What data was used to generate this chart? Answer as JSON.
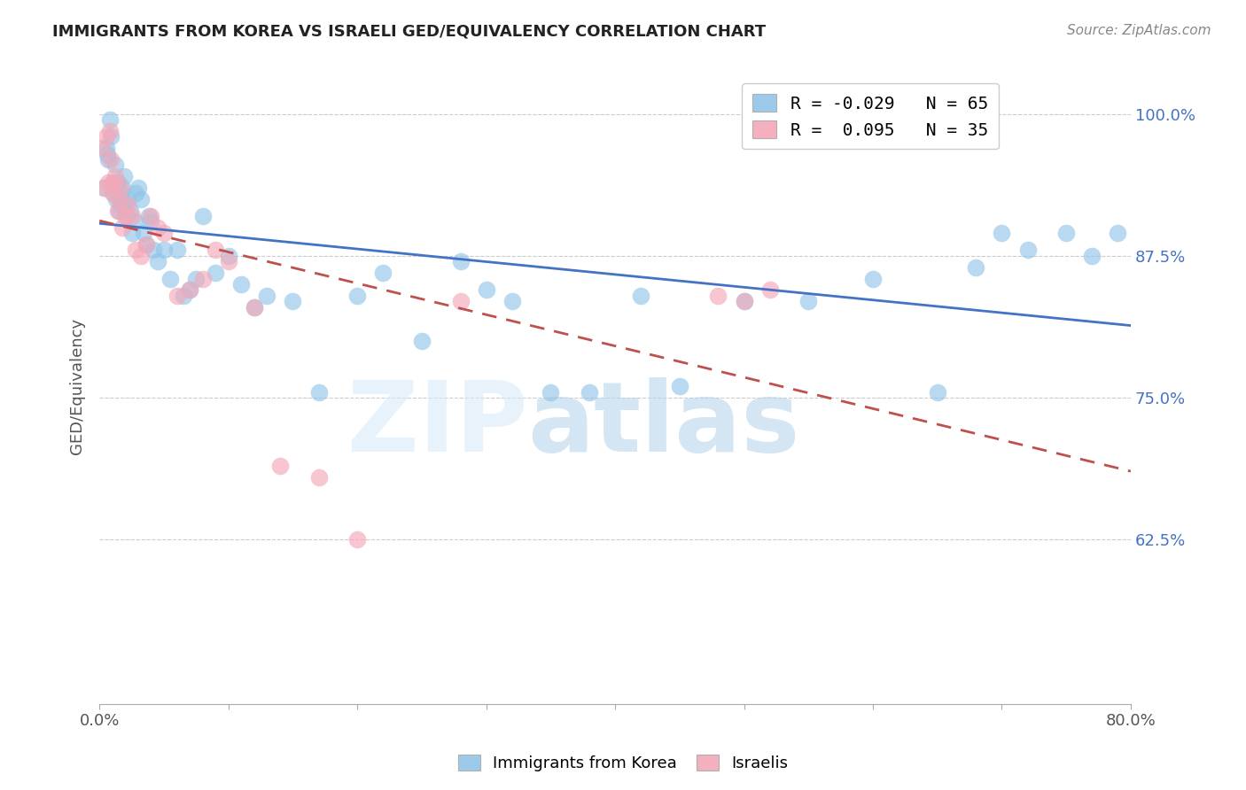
{
  "title": "IMMIGRANTS FROM KOREA VS ISRAELI GED/EQUIVALENCY CORRELATION CHART",
  "source": "Source: ZipAtlas.com",
  "ylabel": "GED/Equivalency",
  "legend_korea": "R = -0.029   N = 65",
  "legend_israel": "R =  0.095   N = 35",
  "legend_label_korea": "Immigrants from Korea",
  "legend_label_israel": "Israelis",
  "xlim": [
    0.0,
    0.8
  ],
  "ylim": [
    0.48,
    1.04
  ],
  "yticks": [
    0.625,
    0.75,
    0.875,
    1.0
  ],
  "ytick_labels": [
    "62.5%",
    "75.0%",
    "87.5%",
    "100.0%"
  ],
  "xticks": [
    0.0,
    0.1,
    0.2,
    0.3,
    0.4,
    0.5,
    0.6,
    0.7,
    0.8
  ],
  "xtick_labels": [
    "0.0%",
    "",
    "",
    "",
    "",
    "",
    "",
    "",
    "80.0%"
  ],
  "color_korea": "#92C5E8",
  "color_israel": "#F4A8B8",
  "color_line_korea": "#4472C4",
  "color_line_israel": "#C0504D",
  "color_axis_labels": "#4472C4",
  "korea_x": [
    0.003,
    0.005,
    0.006,
    0.007,
    0.008,
    0.009,
    0.01,
    0.011,
    0.012,
    0.013,
    0.014,
    0.015,
    0.016,
    0.017,
    0.018,
    0.019,
    0.02,
    0.021,
    0.022,
    0.024,
    0.025,
    0.027,
    0.028,
    0.03,
    0.032,
    0.034,
    0.036,
    0.038,
    0.04,
    0.042,
    0.045,
    0.05,
    0.055,
    0.06,
    0.065,
    0.07,
    0.075,
    0.08,
    0.09,
    0.1,
    0.11,
    0.12,
    0.13,
    0.15,
    0.17,
    0.2,
    0.22,
    0.25,
    0.28,
    0.3,
    0.32,
    0.35,
    0.38,
    0.42,
    0.45,
    0.5,
    0.55,
    0.6,
    0.65,
    0.68,
    0.7,
    0.72,
    0.75,
    0.77,
    0.79
  ],
  "korea_y": [
    0.935,
    0.97,
    0.965,
    0.96,
    0.995,
    0.98,
    0.94,
    0.93,
    0.955,
    0.925,
    0.94,
    0.915,
    0.92,
    0.93,
    0.935,
    0.945,
    0.92,
    0.91,
    0.925,
    0.915,
    0.895,
    0.905,
    0.93,
    0.935,
    0.925,
    0.895,
    0.885,
    0.91,
    0.905,
    0.88,
    0.87,
    0.88,
    0.855,
    0.88,
    0.84,
    0.845,
    0.855,
    0.91,
    0.86,
    0.875,
    0.85,
    0.83,
    0.84,
    0.835,
    0.755,
    0.84,
    0.86,
    0.8,
    0.87,
    0.845,
    0.835,
    0.755,
    0.755,
    0.84,
    0.76,
    0.835,
    0.835,
    0.855,
    0.755,
    0.865,
    0.895,
    0.88,
    0.895,
    0.875,
    0.895
  ],
  "israel_x": [
    0.002,
    0.004,
    0.005,
    0.007,
    0.008,
    0.009,
    0.01,
    0.011,
    0.012,
    0.014,
    0.015,
    0.016,
    0.018,
    0.02,
    0.022,
    0.025,
    0.028,
    0.032,
    0.036,
    0.04,
    0.045,
    0.05,
    0.06,
    0.07,
    0.08,
    0.09,
    0.1,
    0.12,
    0.14,
    0.17,
    0.2,
    0.28,
    0.48,
    0.5,
    0.52
  ],
  "israel_y": [
    0.97,
    0.935,
    0.98,
    0.94,
    0.985,
    0.96,
    0.93,
    0.94,
    0.945,
    0.915,
    0.925,
    0.935,
    0.9,
    0.91,
    0.92,
    0.91,
    0.88,
    0.875,
    0.885,
    0.91,
    0.9,
    0.895,
    0.84,
    0.845,
    0.855,
    0.88,
    0.87,
    0.83,
    0.69,
    0.68,
    0.625,
    0.835,
    0.84,
    0.835,
    0.845
  ]
}
